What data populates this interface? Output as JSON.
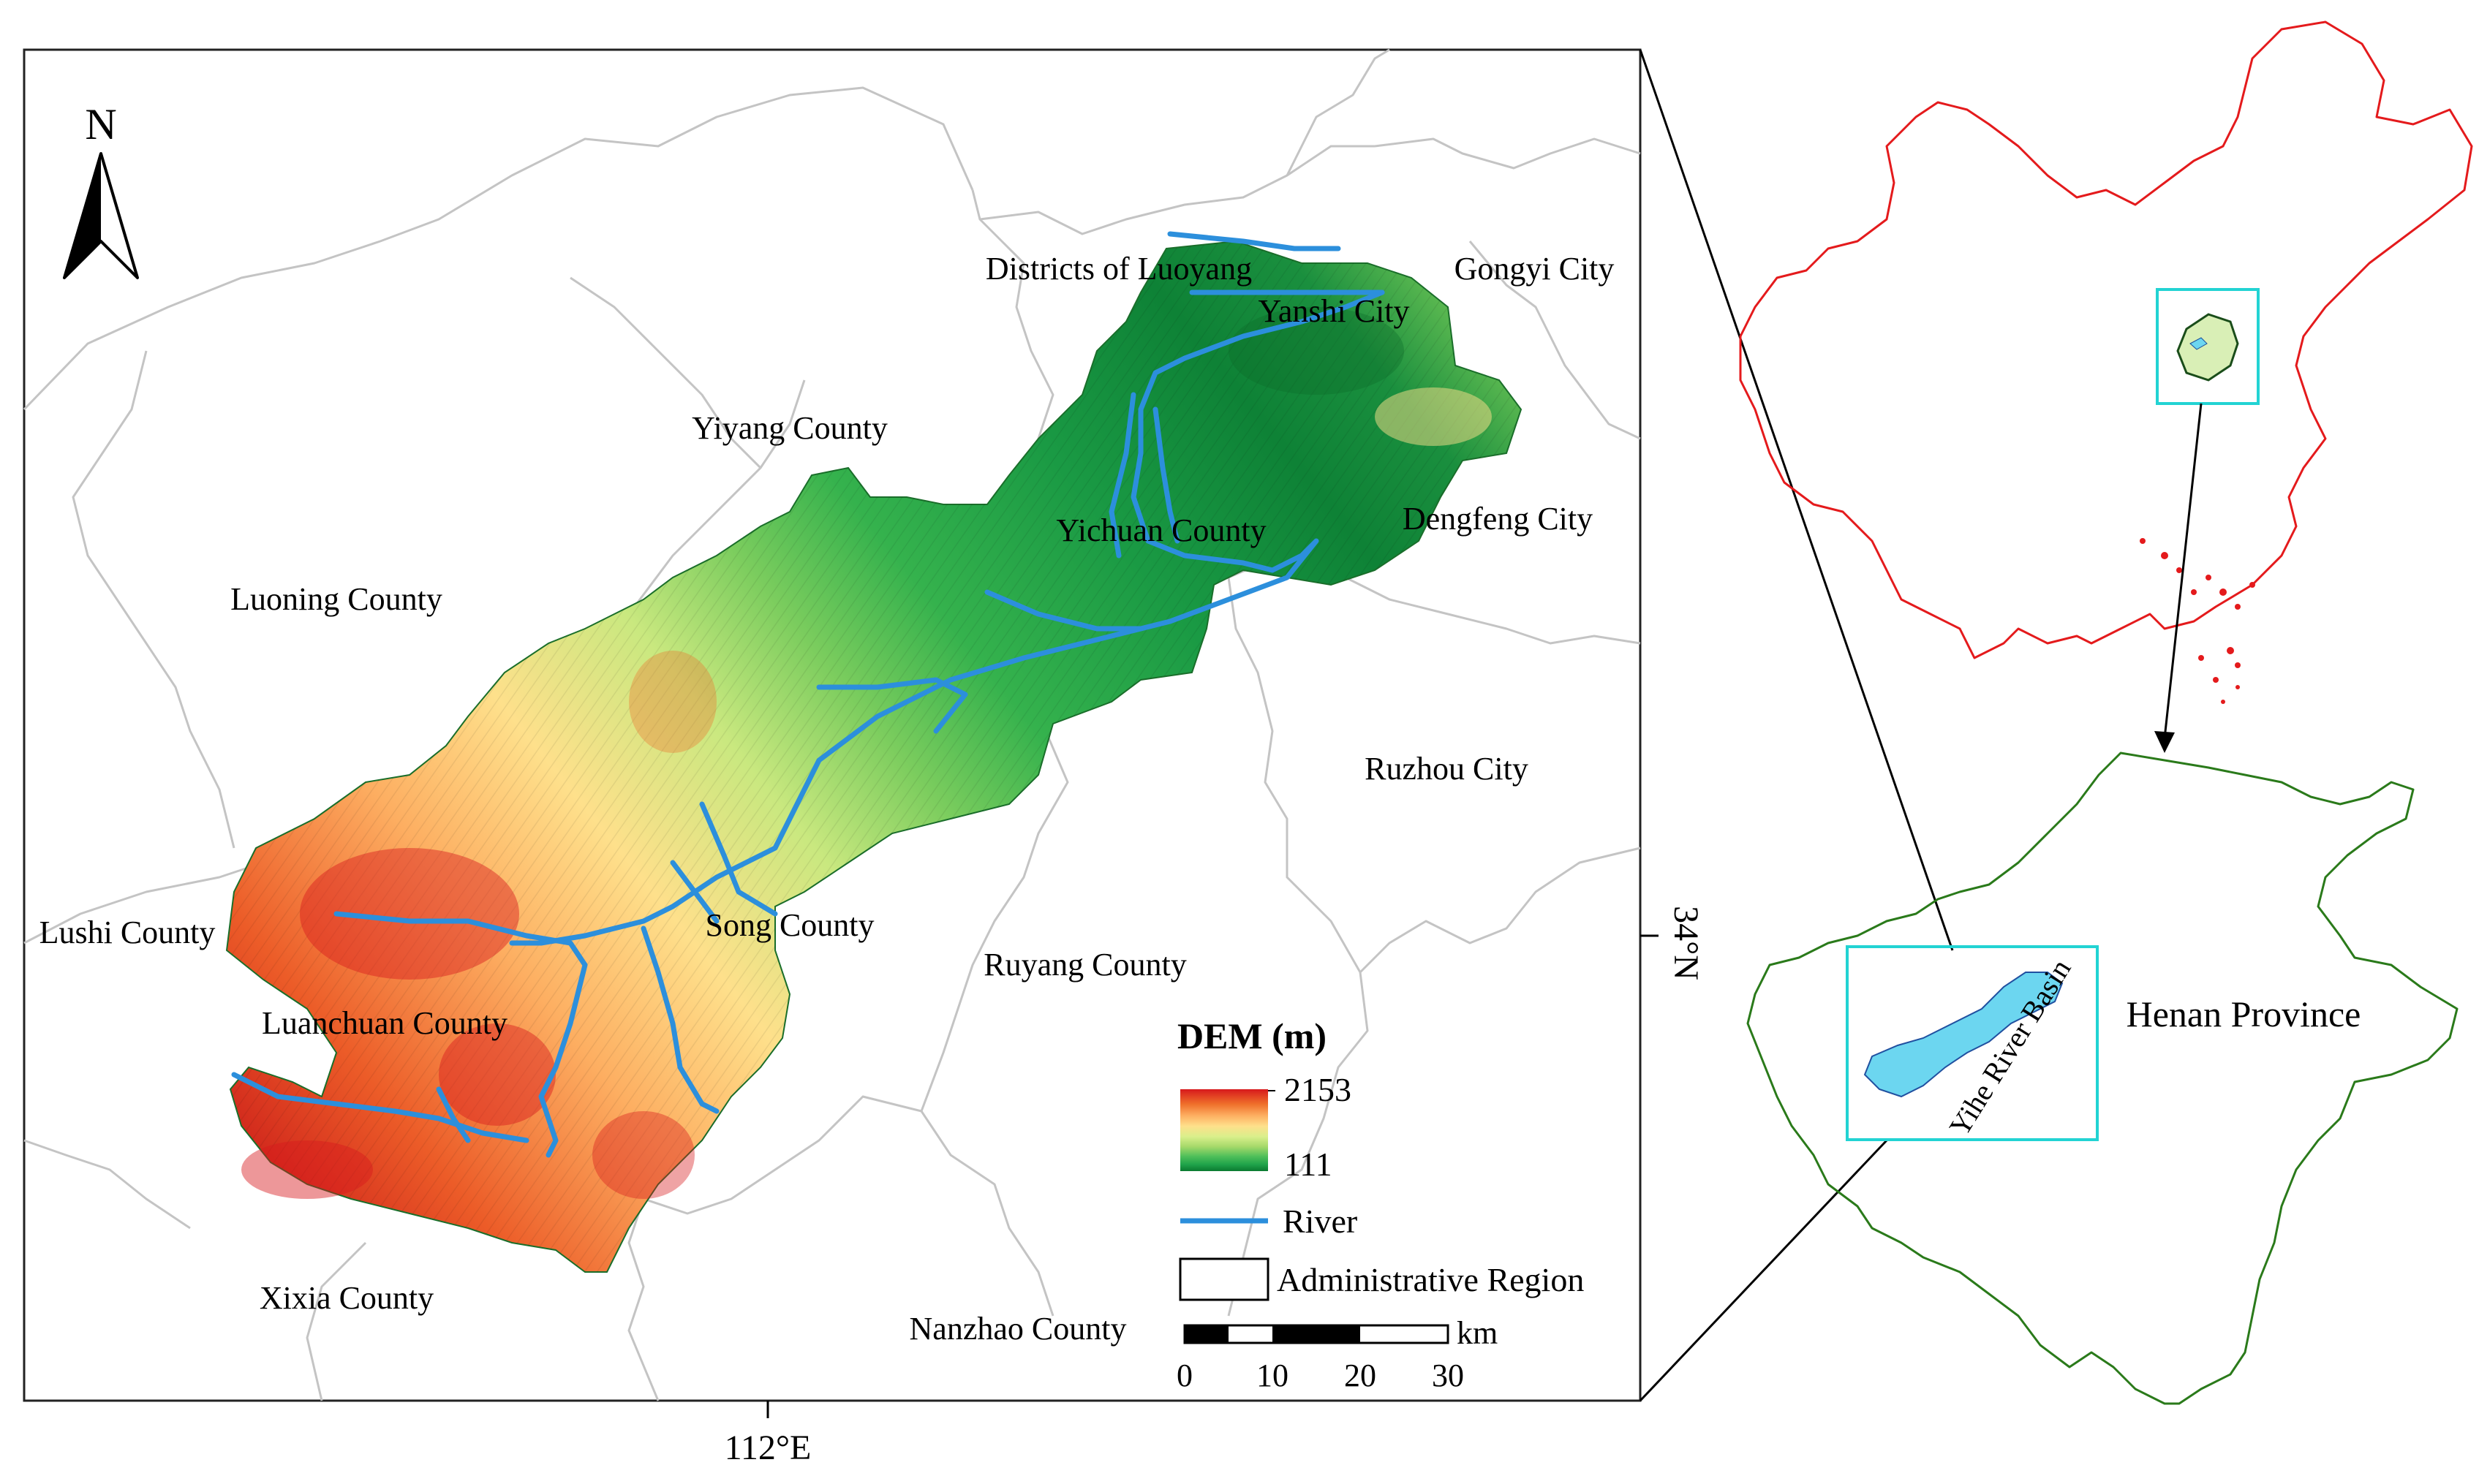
{
  "main_map": {
    "north_label": "N",
    "counties": {
      "luoyang": "Districts of Luoyang",
      "yanshi": "Yanshi City",
      "gongyi": "Gongyi City",
      "yiyang": "Yiyang County",
      "dengfeng": "Dengfeng City",
      "yichuan": "Yichuan County",
      "luoning": "Luoning County",
      "ruzhou": "Ruzhou City",
      "lushi": "Lushi County",
      "song": "Song County",
      "ruyang": "Ruyang County",
      "luanchuan": "Luanchuan County",
      "xixia": "Xixia County",
      "nanzhao": "Nanzhao County"
    },
    "lon_label": "112°E",
    "lat_label": "34°N"
  },
  "legend": {
    "title": "DEM (m)",
    "dem_max": "2153",
    "dem_min": "111",
    "river": "River",
    "admin": "Administrative Region",
    "scale_unit": "km",
    "scale_ticks": [
      "0",
      "10",
      "20",
      "30"
    ]
  },
  "inset": {
    "basin_label": "Yihe River Basin",
    "province_label": "Henan Province"
  },
  "colors": {
    "dem_ramp": [
      "#d7191c",
      "#ef6f2a",
      "#fdae61",
      "#fee08b",
      "#d9ef8b",
      "#a6d96a",
      "#4fbf5a",
      "#1fa34a",
      "#0b7a30"
    ],
    "river": "#2c8fdc",
    "admin_boundary": "#c8c8c8",
    "china_outline": "#e41a1c",
    "henan_outline": "#2a7a1a",
    "inset_frame": "#22d3d3",
    "basin_fill": "#6cd6f0"
  }
}
